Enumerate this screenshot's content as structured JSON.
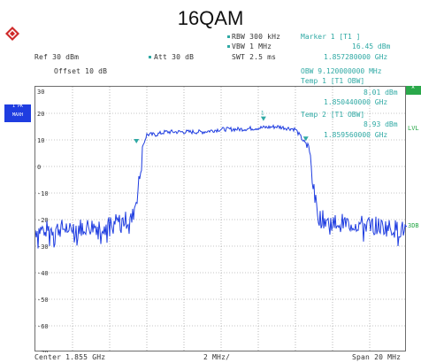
{
  "title": "16QAM",
  "header": {
    "rbw": "RBW 300 kHz",
    "vbw": "VBW 1 MHz",
    "swt": "SWT 2.5 ms",
    "ref": "Ref 30 dBm",
    "att": "Att  30 dB",
    "marker_title": "Marker 1 [T1 ]",
    "marker_value": "16.45 dBm",
    "marker_freq": "1.857280000 GHz"
  },
  "overlay": {
    "offset": "Offset  10 dB",
    "obw_line": "OBW   9.120000000 MHz",
    "temp_line": "Temp 1 [T1 OBW]",
    "temp_value": "8.01 dBm",
    "temp_freq": "1.850440000 GHz",
    "temp2_line": "Temp 2 [T1 OBW]",
    "temp2_value": "8.93 dBm",
    "temp2_freq": "1.859560000 GHz"
  },
  "left_tags": {
    "trace_mode_1": "1 PK",
    "trace_mode_2": "MAXH"
  },
  "right_tags": {
    "a": "A",
    "lvl": "LVL",
    "db": "3DB"
  },
  "footer": {
    "center": "Center 1.855 GHz",
    "div": "2 MHz/",
    "span": "Span 20 MHz"
  },
  "y_ticks": [
    "30",
    "20",
    "10",
    "0",
    "-10",
    "-20",
    "-30",
    "-40",
    "-50",
    "-60",
    "-70"
  ],
  "colors": {
    "trace": "#1f3de0",
    "grid": "#8c8c8c",
    "marker": "#2fa9a4",
    "badge": "#1f3de0",
    "green": "#2aa84a"
  },
  "chart_data": {
    "type": "line",
    "title": "16QAM",
    "xlabel": "",
    "ylabel": "",
    "xlim": [
      1.845,
      1.865
    ],
    "ylim": [
      -70,
      30
    ],
    "series": [
      {
        "name": "",
        "x": [
          1.845,
          1.847,
          1.849,
          1.85,
          1.8502,
          1.8505,
          1.8507,
          1.8508,
          1.851,
          1.8515,
          1.852,
          1.854,
          1.855,
          1.856,
          1.858,
          1.859,
          1.8592,
          1.8594,
          1.8596,
          1.8598,
          1.86,
          1.8602,
          1.8604,
          1.8606,
          1.8608,
          1.861,
          1.863,
          1.865
        ],
        "values": [
          -24,
          -23,
          -22,
          -20,
          -20,
          -10,
          0,
          8,
          12,
          12,
          13,
          13,
          14,
          14,
          15,
          14,
          12,
          10,
          8,
          4,
          -10,
          -18,
          -20,
          -20,
          -20,
          -21,
          -22,
          -24
        ]
      }
    ],
    "markers": [
      {
        "name": "T1",
        "x": 1.85728,
        "value": 16.45
      },
      {
        "name": "T1 OBW 1",
        "x": 1.85044,
        "value": 8.01
      },
      {
        "name": "T1 OBW 2",
        "x": 1.85956,
        "value": 8.93
      }
    ]
  }
}
